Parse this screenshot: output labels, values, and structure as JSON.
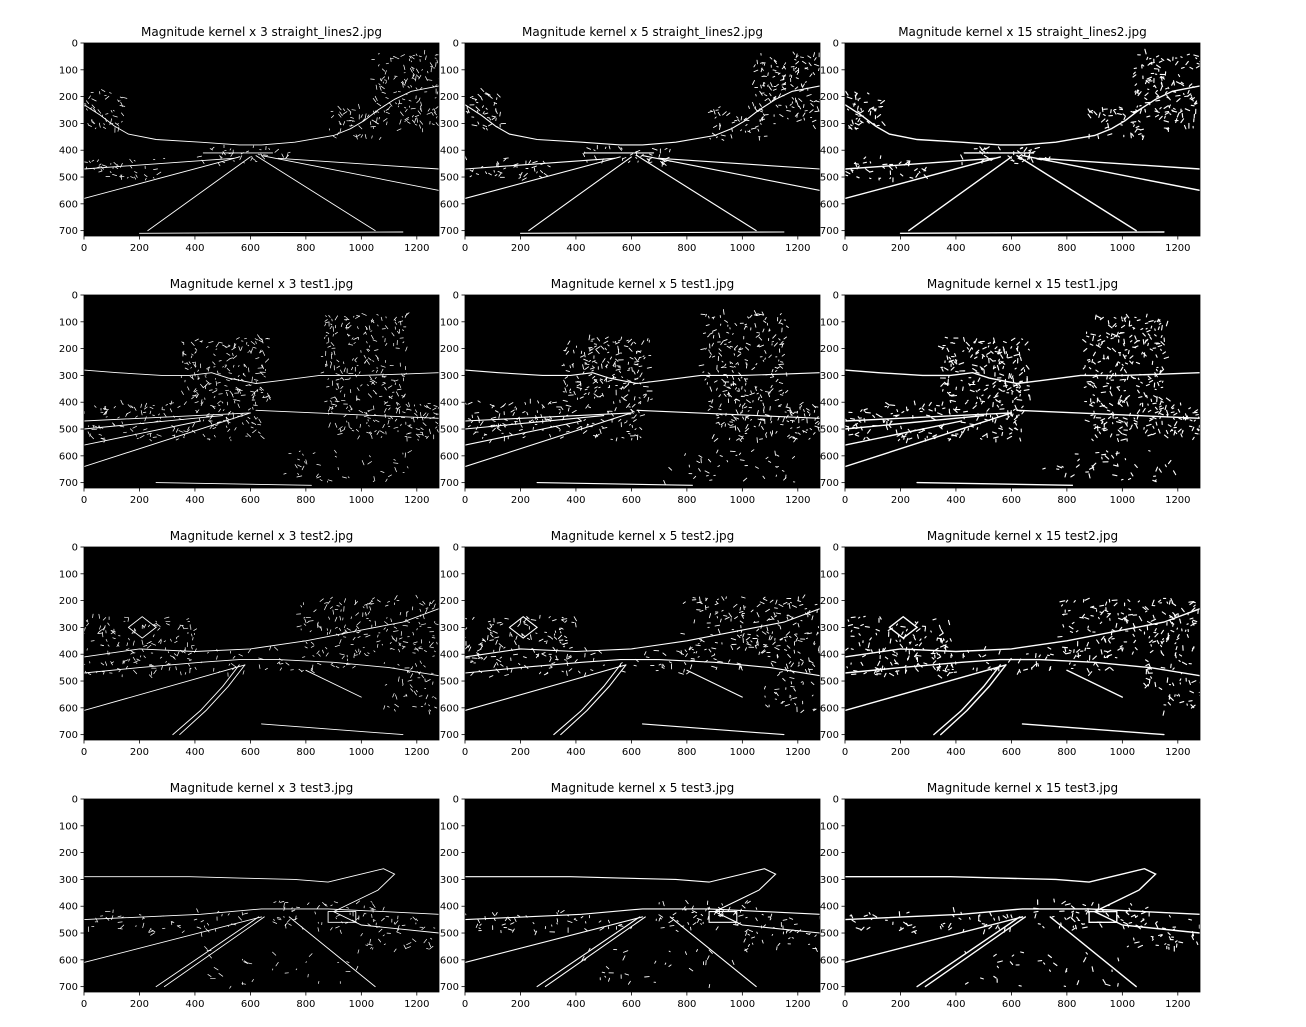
{
  "figure": {
    "background": "#ffffff",
    "image_background": "#000000",
    "edge_color": "#ffffff"
  },
  "chart_data": [
    {
      "type": "image",
      "title": "Magnitude kernel x 3 straight_lines2.jpg",
      "image": "straight_lines2.jpg",
      "kernel": 3,
      "xlim": [
        0,
        1280
      ],
      "ylim": [
        720,
        0
      ],
      "xticks": [
        0,
        200,
        400,
        600,
        800,
        1000,
        1200
      ],
      "yticks": [
        0,
        100,
        200,
        300,
        400,
        500,
        600,
        700
      ]
    },
    {
      "type": "image",
      "title": "Magnitude kernel x 5 straight_lines2.jpg",
      "image": "straight_lines2.jpg",
      "kernel": 5,
      "xlim": [
        0,
        1280
      ],
      "ylim": [
        720,
        0
      ],
      "xticks": [
        0,
        200,
        400,
        600,
        800,
        1000,
        1200
      ],
      "yticks": [
        0,
        100,
        200,
        300,
        400,
        500,
        600,
        700
      ]
    },
    {
      "type": "image",
      "title": "Magnitude kernel x 15 straight_lines2.jpg",
      "image": "straight_lines2.jpg",
      "kernel": 15,
      "xlim": [
        0,
        1280
      ],
      "ylim": [
        720,
        0
      ],
      "xticks": [
        0,
        200,
        400,
        600,
        800,
        1000,
        1200
      ],
      "yticks": [
        0,
        100,
        200,
        300,
        400,
        500,
        600,
        700
      ]
    },
    {
      "type": "image",
      "title": "Magnitude kernel x 3 test1.jpg",
      "image": "test1.jpg",
      "kernel": 3,
      "xlim": [
        0,
        1280
      ],
      "ylim": [
        720,
        0
      ],
      "xticks": [
        0,
        200,
        400,
        600,
        800,
        1000,
        1200
      ],
      "yticks": [
        0,
        100,
        200,
        300,
        400,
        500,
        600,
        700
      ]
    },
    {
      "type": "image",
      "title": "Magnitude kernel x 5 test1.jpg",
      "image": "test1.jpg",
      "kernel": 5,
      "xlim": [
        0,
        1280
      ],
      "ylim": [
        720,
        0
      ],
      "xticks": [
        0,
        200,
        400,
        600,
        800,
        1000,
        1200
      ],
      "yticks": [
        0,
        100,
        200,
        300,
        400,
        500,
        600,
        700
      ]
    },
    {
      "type": "image",
      "title": "Magnitude kernel x 15 test1.jpg",
      "image": "test1.jpg",
      "kernel": 15,
      "xlim": [
        0,
        1280
      ],
      "ylim": [
        720,
        0
      ],
      "xticks": [
        0,
        200,
        400,
        600,
        800,
        1000,
        1200
      ],
      "yticks": [
        0,
        100,
        200,
        300,
        400,
        500,
        600,
        700
      ]
    },
    {
      "type": "image",
      "title": "Magnitude kernel x 3 test2.jpg",
      "image": "test2.jpg",
      "kernel": 3,
      "xlim": [
        0,
        1280
      ],
      "ylim": [
        720,
        0
      ],
      "xticks": [
        0,
        200,
        400,
        600,
        800,
        1000,
        1200
      ],
      "yticks": [
        0,
        100,
        200,
        300,
        400,
        500,
        600,
        700
      ]
    },
    {
      "type": "image",
      "title": "Magnitude kernel x 5 test2.jpg",
      "image": "test2.jpg",
      "kernel": 5,
      "xlim": [
        0,
        1280
      ],
      "ylim": [
        720,
        0
      ],
      "xticks": [
        0,
        200,
        400,
        600,
        800,
        1000,
        1200
      ],
      "yticks": [
        0,
        100,
        200,
        300,
        400,
        500,
        600,
        700
      ]
    },
    {
      "type": "image",
      "title": "Magnitude kernel x 15 test2.jpg",
      "image": "test2.jpg",
      "kernel": 15,
      "xlim": [
        0,
        1280
      ],
      "ylim": [
        720,
        0
      ],
      "xticks": [
        0,
        200,
        400,
        600,
        800,
        1000,
        1200
      ],
      "yticks": [
        0,
        100,
        200,
        300,
        400,
        500,
        600,
        700
      ]
    },
    {
      "type": "image",
      "title": "Magnitude kernel x 3 test3.jpg",
      "image": "test3.jpg",
      "kernel": 3,
      "xlim": [
        0,
        1280
      ],
      "ylim": [
        720,
        0
      ],
      "xticks": [
        0,
        200,
        400,
        600,
        800,
        1000,
        1200
      ],
      "yticks": [
        0,
        100,
        200,
        300,
        400,
        500,
        600,
        700
      ]
    },
    {
      "type": "image",
      "title": "Magnitude kernel x 5 test3.jpg",
      "image": "test3.jpg",
      "kernel": 5,
      "xlim": [
        0,
        1280
      ],
      "ylim": [
        720,
        0
      ],
      "xticks": [
        0,
        200,
        400,
        600,
        800,
        1000,
        1200
      ],
      "yticks": [
        0,
        100,
        200,
        300,
        400,
        500,
        600,
        700
      ]
    },
    {
      "type": "image",
      "title": "Magnitude kernel x 15 test3.jpg",
      "image": "test3.jpg",
      "kernel": 15,
      "xlim": [
        0,
        1280
      ],
      "ylim": [
        720,
        0
      ],
      "xticks": [
        0,
        200,
        400,
        600,
        800,
        1000,
        1200
      ],
      "yticks": [
        0,
        100,
        200,
        300,
        400,
        500,
        600,
        700
      ]
    }
  ]
}
